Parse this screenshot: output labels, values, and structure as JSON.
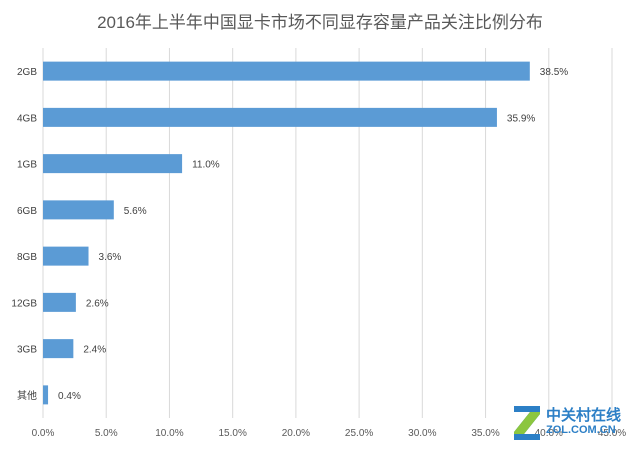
{
  "chart_data": {
    "type": "bar",
    "orientation": "horizontal",
    "title": "2016年上半年中国显卡市场不同显存容量产品关注比例分布",
    "categories": [
      "2GB",
      "4GB",
      "1GB",
      "6GB",
      "8GB",
      "12GB",
      "3GB",
      "其他"
    ],
    "values": [
      38.5,
      35.9,
      11.0,
      5.6,
      3.6,
      2.6,
      2.4,
      0.4
    ],
    "data_labels": [
      "38.5%",
      "35.9%",
      "11.0%",
      "5.6%",
      "3.6%",
      "2.6%",
      "2.4%",
      "0.4%"
    ],
    "xlim": [
      0,
      45
    ],
    "xticks": [
      "0.0%",
      "5.0%",
      "10.0%",
      "15.0%",
      "20.0%",
      "25.0%",
      "30.0%",
      "35.0%",
      "40.0%",
      "45.0%"
    ],
    "grid": true,
    "bar_color": "#5b9bd5"
  },
  "watermark": {
    "name": "中关村在线",
    "url": "ZOL.COM.CN",
    "logo_icon": "zol-z-logo-icon"
  }
}
